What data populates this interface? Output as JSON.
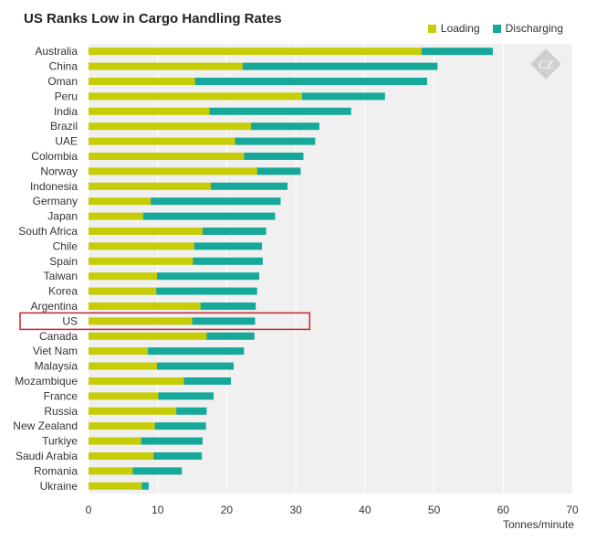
{
  "chart_data": {
    "type": "bar",
    "orientation": "horizontal",
    "stacked": true,
    "title": "US Ranks Low in Cargo Handling Rates",
    "xlabel": "Tonnes/minute",
    "xlim": [
      0,
      70
    ],
    "xticks": [
      0,
      10,
      20,
      30,
      40,
      50,
      60,
      70
    ],
    "grid": true,
    "legend_position": "top-right",
    "highlighted_category": "US",
    "colors": {
      "Loading": "#c6cc05",
      "Discharging": "#16a99a",
      "plot_bg": "#f0f0f0",
      "highlight_box": "#c0272d",
      "watermark": "#cfcfcf"
    },
    "watermark": "CZ",
    "categories": [
      "Australia",
      "China",
      "Oman",
      "Peru",
      "India",
      "Brazil",
      "UAE",
      "Colombia",
      "Norway",
      "Indonesia",
      "Germany",
      "Japan",
      "South Africa",
      "Chile",
      "Spain",
      "Taiwan",
      "Korea",
      "Argentina",
      "US",
      "Canada",
      "Viet Nam",
      "Malaysia",
      "Mozambique",
      "France",
      "Russia",
      "New Zealand",
      "Turkiye",
      "Saudi Arabia",
      "Romania",
      "Ukraine"
    ],
    "series": [
      {
        "name": "Loading",
        "values": [
          48.2,
          22.3,
          15.4,
          30.9,
          17.5,
          23.5,
          21.2,
          22.5,
          24.4,
          17.7,
          9.0,
          7.9,
          16.5,
          15.3,
          15.1,
          9.9,
          9.8,
          16.2,
          15.0,
          17.1,
          8.6,
          9.9,
          13.8,
          10.1,
          12.7,
          9.6,
          7.6,
          9.4,
          6.4,
          7.7
        ]
      },
      {
        "name": "Discharging",
        "values": [
          10.3,
          28.2,
          33.6,
          12.0,
          20.5,
          9.9,
          11.6,
          8.6,
          6.3,
          11.1,
          18.8,
          19.1,
          9.2,
          9.8,
          10.1,
          14.8,
          14.6,
          8.0,
          9.1,
          6.9,
          13.9,
          11.1,
          6.8,
          8.0,
          4.4,
          7.4,
          8.9,
          7.0,
          7.1,
          1.0
        ]
      }
    ]
  }
}
